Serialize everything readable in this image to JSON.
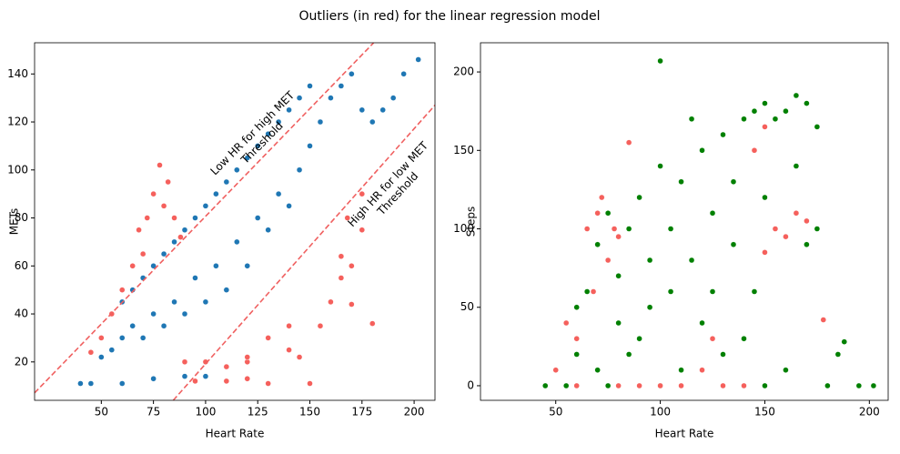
{
  "title": "Outliers (in red) for the linear regression model",
  "chart_data": [
    {
      "type": "scatter",
      "xlabel": "Heart Rate",
      "ylabel": "METs",
      "xlim": [
        18,
        210
      ],
      "ylim": [
        4,
        153
      ],
      "xticks": [
        50,
        75,
        100,
        125,
        150,
        175,
        200
      ],
      "yticks": [
        20,
        40,
        60,
        80,
        100,
        120,
        140
      ],
      "series": [
        {
          "color": "#1f77b4",
          "x": [
            50,
            55,
            60,
            60,
            65,
            65,
            70,
            70,
            75,
            75,
            80,
            80,
            85,
            85,
            90,
            90,
            95,
            95,
            100,
            100,
            105,
            105,
            110,
            110,
            115,
            115,
            120,
            120,
            125,
            125,
            130,
            130,
            135,
            135,
            140,
            140,
            145,
            145,
            150,
            150,
            155,
            160,
            165,
            170,
            175,
            180,
            185,
            190,
            195,
            202,
            45,
            60,
            75,
            90,
            40,
            100
          ],
          "values": [
            22,
            25,
            30,
            45,
            35,
            50,
            30,
            55,
            40,
            60,
            35,
            65,
            45,
            70,
            40,
            75,
            55,
            80,
            45,
            85,
            60,
            90,
            50,
            95,
            70,
            100,
            60,
            105,
            80,
            110,
            75,
            115,
            90,
            120,
            85,
            125,
            100,
            130,
            110,
            135,
            120,
            130,
            135,
            140,
            125,
            120,
            125,
            130,
            140,
            146,
            11,
            11,
            13,
            14,
            11,
            14
          ]
        },
        {
          "color": "#f5605c",
          "x": [
            45,
            50,
            55,
            60,
            65,
            68,
            70,
            75,
            78,
            80,
            72,
            85,
            90,
            95,
            110,
            120,
            130,
            150,
            110,
            120,
            140,
            145,
            155,
            160,
            165,
            170,
            175,
            180,
            170,
            165,
            175,
            168,
            140,
            130,
            120,
            100,
            82,
            88
          ],
          "values": [
            24,
            30,
            40,
            50,
            60,
            75,
            65,
            90,
            102,
            85,
            80,
            80,
            20,
            12,
            12,
            13,
            11,
            11,
            18,
            20,
            25,
            22,
            35,
            45,
            55,
            60,
            75,
            36,
            44,
            64,
            90,
            80,
            35,
            30,
            22,
            20,
            95,
            72
          ]
        }
      ],
      "lines": [
        {
          "color": "#f06060",
          "x": [
            18,
            180.6
          ],
          "values": [
            7.1,
            153
          ]
        },
        {
          "color": "#f06060",
          "x": [
            84.5,
            210
          ],
          "values": [
            4,
            127
          ]
        }
      ],
      "annotations": [
        [
          "Low HR for high MET",
          "Threshold"
        ],
        [
          "High HR for low MET",
          "Threshold"
        ]
      ]
    },
    {
      "type": "scatter",
      "xlabel": "Heart Rate",
      "ylabel": "Steps",
      "xlim": [
        14,
        209
      ],
      "ylim": [
        -9.3,
        218.6
      ],
      "xticks": [
        50,
        100,
        150,
        200
      ],
      "yticks": [
        0,
        50,
        100,
        150,
        200
      ],
      "series": [
        {
          "color": "#008000",
          "x": [
            45,
            55,
            60,
            65,
            70,
            75,
            80,
            85,
            90,
            95,
            100,
            100,
            105,
            110,
            115,
            120,
            125,
            130,
            135,
            140,
            145,
            150,
            155,
            160,
            165,
            170,
            175,
            150,
            145,
            140,
            130,
            120,
            110,
            100,
            90,
            80,
            70,
            60,
            150,
            160,
            170,
            180,
            188,
            195,
            202,
            185,
            175,
            165,
            125,
            105,
            95,
            85,
            75,
            115,
            135
          ],
          "values": [
            0,
            0,
            20,
            60,
            90,
            110,
            40,
            100,
            120,
            80,
            140,
            207,
            60,
            130,
            170,
            150,
            110,
            160,
            90,
            170,
            175,
            180,
            170,
            175,
            185,
            180,
            165,
            120,
            60,
            30,
            20,
            40,
            10,
            0,
            30,
            70,
            10,
            50,
            0,
            10,
            90,
            0,
            28,
            0,
            0,
            20,
            100,
            140,
            60,
            100,
            50,
            20,
            0,
            80,
            130
          ]
        },
        {
          "color": "#f5605c",
          "x": [
            60,
            65,
            70,
            75,
            72,
            80,
            85,
            68,
            55,
            50,
            60,
            78,
            90,
            110,
            130,
            150,
            155,
            160,
            165,
            170,
            145,
            150,
            120,
            125,
            178,
            140,
            80,
            100
          ],
          "values": [
            0,
            100,
            110,
            80,
            120,
            95,
            155,
            60,
            40,
            10,
            30,
            100,
            0,
            0,
            0,
            85,
            100,
            95,
            110,
            105,
            150,
            165,
            10,
            30,
            42,
            0,
            0,
            0
          ]
        }
      ]
    }
  ]
}
